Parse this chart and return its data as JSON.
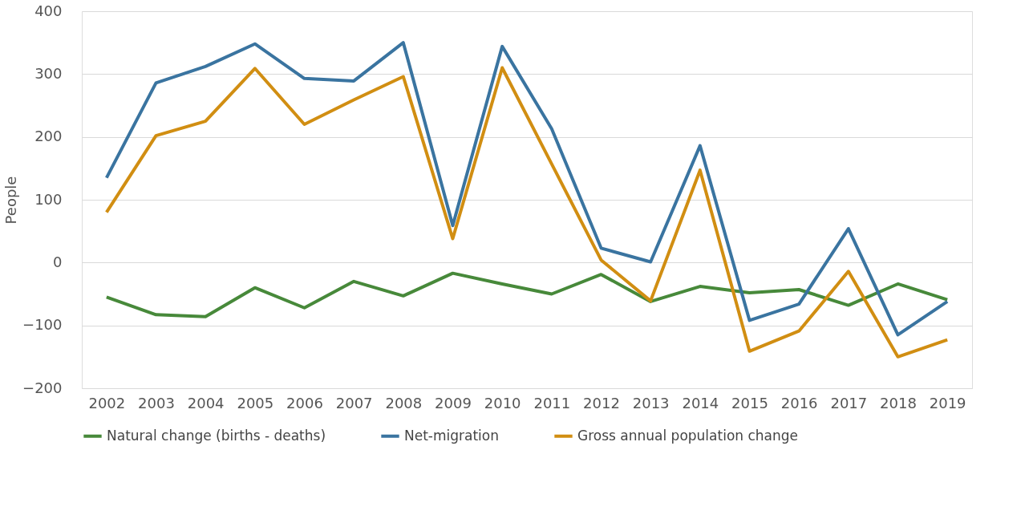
{
  "chart_data": {
    "type": "line",
    "ylabel": "People",
    "categories": [
      "2002",
      "2003",
      "2004",
      "2005",
      "2006",
      "2007",
      "2008",
      "2009",
      "2010",
      "2011",
      "2012",
      "2013",
      "2014",
      "2015",
      "2016",
      "2017",
      "2018",
      "2019"
    ],
    "series": [
      {
        "name": "Natural change (births - deaths)",
        "color": "#47893a",
        "values": [
          -55,
          -83,
          -86,
          -40,
          -72,
          -30,
          -53,
          -17,
          -34,
          -50,
          -19,
          -62,
          -38,
          -48,
          -43,
          -68,
          -34,
          -59
        ]
      },
      {
        "name": "Net-migration",
        "color": "#3a74a0",
        "values": [
          135,
          286,
          312,
          348,
          293,
          289,
          350,
          59,
          344,
          213,
          23,
          1,
          186,
          -92,
          -66,
          54,
          -115,
          -62
        ]
      },
      {
        "name": "Gross annual population change",
        "color": "#d18e12",
        "values": [
          80,
          202,
          225,
          309,
          220,
          259,
          296,
          38,
          310,
          157,
          4,
          -61,
          147,
          -141,
          -109,
          -14,
          -150,
          -123
        ]
      }
    ],
    "ylim": [
      -200,
      400
    ],
    "yticks": [
      -200,
      -100,
      0,
      100,
      200,
      300,
      400
    ],
    "grid": "y",
    "legend": "bottom",
    "marker": "none",
    "line_style": "solid"
  }
}
